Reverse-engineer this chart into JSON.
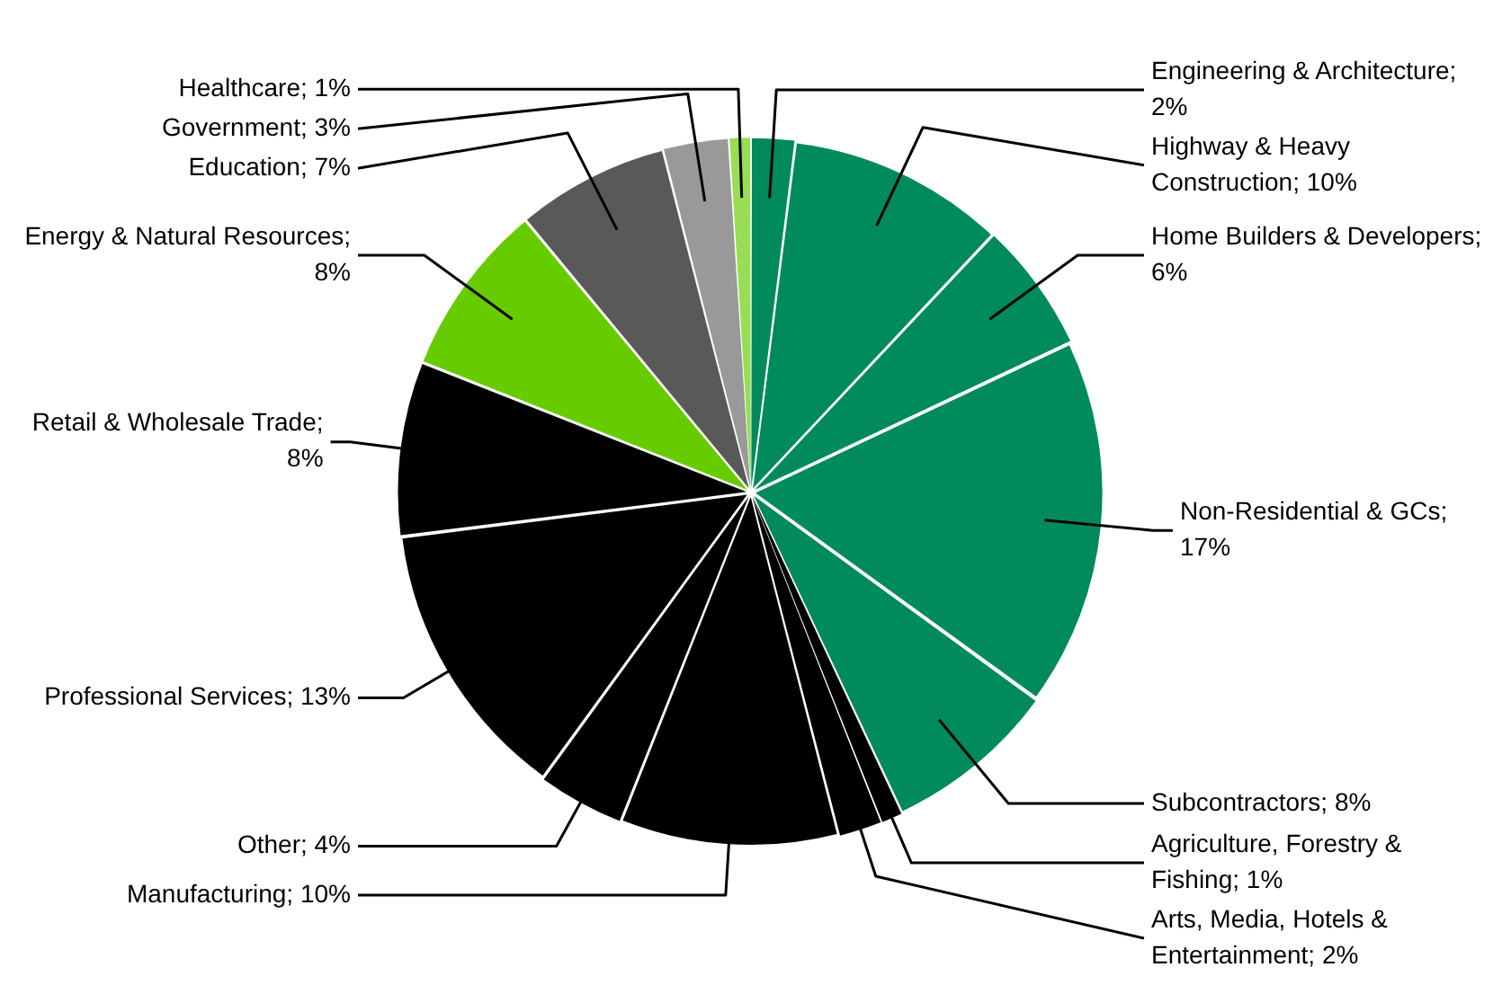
{
  "chart_data": {
    "type": "pie",
    "categories": [
      "Engineering & Architecture; 2%",
      "Highway & Heavy Construction; 10%",
      "Home Builders & Developers; 6%",
      "Non-Residential & GCs; 17%",
      "Subcontractors; 8%",
      "Agriculture, Forestry & Fishing; 1%",
      "Arts, Media, Hotels & Entertainment; 2%",
      "Manufacturing; 10%",
      "Other; 4%",
      "Professional Services; 13%",
      "Retail & Wholesale Trade; 8%",
      "Energy & Natural Resources; 8%",
      "Education; 7%",
      "Government; 3%",
      "Healthcare; 1%"
    ],
    "values": [
      2,
      10,
      6,
      17,
      8,
      1,
      2,
      10,
      4,
      13,
      8,
      8,
      7,
      3,
      1
    ],
    "colors": [
      "#008a5e",
      "#008a5e",
      "#008a5e",
      "#008a5e",
      "#008a5e",
      "#000000",
      "#000000",
      "#000000",
      "#000000",
      "#000000",
      "#000000",
      "#66cc00",
      "#595959",
      "#999999",
      "#99dd55"
    ],
    "legend": false
  }
}
